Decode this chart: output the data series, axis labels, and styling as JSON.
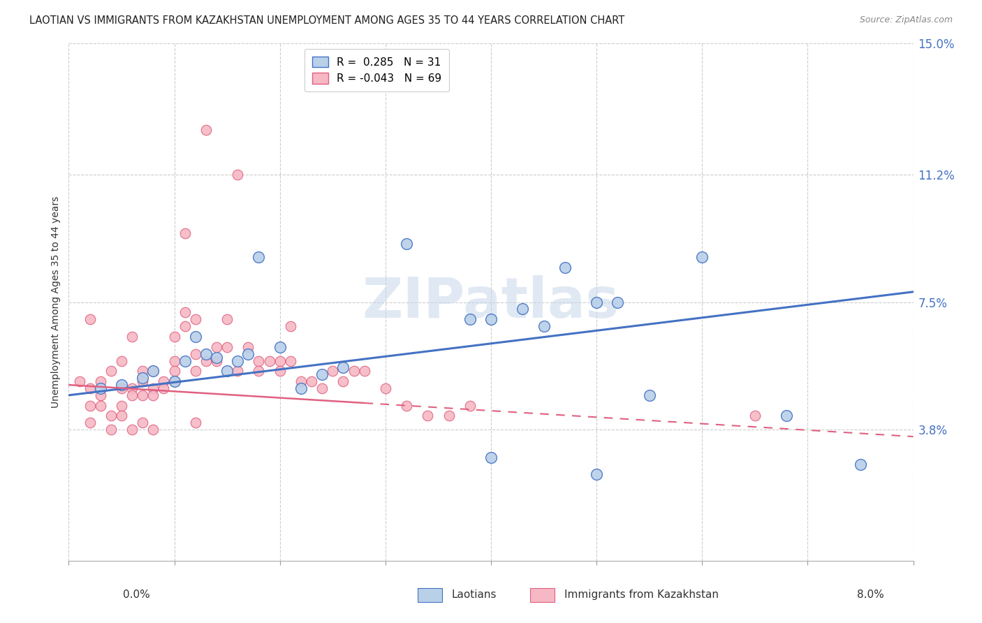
{
  "title": "LAOTIAN VS IMMIGRANTS FROM KAZAKHSTAN UNEMPLOYMENT AMONG AGES 35 TO 44 YEARS CORRELATION CHART",
  "source": "Source: ZipAtlas.com",
  "ylabel": "Unemployment Among Ages 35 to 44 years",
  "yticks_right": [
    3.8,
    7.5,
    11.2,
    15.0
  ],
  "ytick_labels_right": [
    "3.8%",
    "7.5%",
    "11.2%",
    "15.0%"
  ],
  "xmin": 0.0,
  "xmax": 8.0,
  "ymin": 0.0,
  "ymax": 15.0,
  "legend1_R": "0.285",
  "legend1_N": "31",
  "legend2_R": "-0.043",
  "legend2_N": "69",
  "color_laotian": "#b8d0e8",
  "color_kazakhstan": "#f5b8c4",
  "color_line_laotian": "#4472C4",
  "color_line_kazakhstan": "#E06080",
  "watermark": "ZIPatlas",
  "laotian_x": [
    0.3,
    0.5,
    0.7,
    0.8,
    1.0,
    1.1,
    1.2,
    1.3,
    1.4,
    1.5,
    1.6,
    1.7,
    1.8,
    2.0,
    2.2,
    2.4,
    2.6,
    3.2,
    3.8,
    4.0,
    4.3,
    4.5,
    4.7,
    5.0,
    5.2,
    5.5,
    6.0,
    6.8,
    7.5,
    4.0,
    5.0
  ],
  "laotian_y": [
    5.0,
    5.1,
    5.3,
    5.5,
    5.2,
    5.8,
    6.5,
    6.0,
    5.9,
    5.5,
    5.8,
    6.0,
    8.8,
    6.2,
    5.0,
    5.4,
    5.6,
    9.2,
    7.0,
    7.0,
    7.3,
    6.8,
    8.5,
    7.5,
    7.5,
    4.8,
    8.8,
    4.2,
    2.8,
    3.0,
    2.5
  ],
  "kazakhstan_x": [
    0.1,
    0.2,
    0.2,
    0.3,
    0.3,
    0.4,
    0.4,
    0.5,
    0.5,
    0.5,
    0.6,
    0.6,
    0.6,
    0.7,
    0.7,
    0.7,
    0.8,
    0.8,
    0.8,
    0.9,
    0.9,
    1.0,
    1.0,
    1.0,
    1.0,
    1.1,
    1.1,
    1.1,
    1.2,
    1.2,
    1.2,
    1.3,
    1.3,
    1.4,
    1.4,
    1.5,
    1.5,
    1.6,
    1.6,
    1.7,
    1.8,
    1.8,
    1.9,
    2.0,
    2.0,
    2.1,
    2.1,
    2.2,
    2.3,
    2.4,
    2.5,
    2.6,
    2.7,
    2.8,
    3.0,
    3.2,
    3.4,
    3.6,
    3.8,
    0.3,
    0.2,
    0.2,
    0.4,
    0.5,
    0.6,
    0.7,
    0.8,
    1.2,
    6.5
  ],
  "kazakhstan_y": [
    5.2,
    4.5,
    5.0,
    5.2,
    4.8,
    5.5,
    4.2,
    5.8,
    5.0,
    4.5,
    6.5,
    5.0,
    4.8,
    5.5,
    4.8,
    5.2,
    5.5,
    5.0,
    4.8,
    5.2,
    5.0,
    6.5,
    5.8,
    5.5,
    5.2,
    9.5,
    7.2,
    6.8,
    7.0,
    6.0,
    5.5,
    12.5,
    5.8,
    6.2,
    5.8,
    7.0,
    6.2,
    11.2,
    5.5,
    6.2,
    5.8,
    5.5,
    5.8,
    5.8,
    5.5,
    6.8,
    5.8,
    5.2,
    5.2,
    5.0,
    5.5,
    5.2,
    5.5,
    5.5,
    5.0,
    4.5,
    4.2,
    4.2,
    4.5,
    4.5,
    7.0,
    4.0,
    3.8,
    4.2,
    3.8,
    4.0,
    3.8,
    4.0,
    4.2
  ],
  "line_laotian_x0": 0.0,
  "line_laotian_y0": 4.8,
  "line_laotian_x1": 8.0,
  "line_laotian_y1": 7.8,
  "line_kaz_x0": 0.0,
  "line_kaz_y0": 5.1,
  "line_kaz_x1": 8.0,
  "line_kaz_y1": 3.6
}
